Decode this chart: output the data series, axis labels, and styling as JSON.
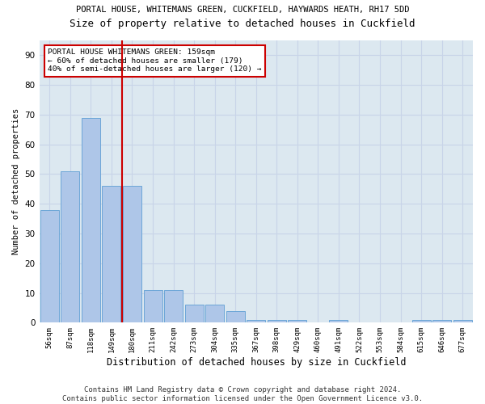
{
  "title1": "PORTAL HOUSE, WHITEMANS GREEN, CUCKFIELD, HAYWARDS HEATH, RH17 5DD",
  "title2": "Size of property relative to detached houses in Cuckfield",
  "xlabel": "Distribution of detached houses by size in Cuckfield",
  "ylabel": "Number of detached properties",
  "categories": [
    "56sqm",
    "87sqm",
    "118sqm",
    "149sqm",
    "180sqm",
    "211sqm",
    "242sqm",
    "273sqm",
    "304sqm",
    "335sqm",
    "367sqm",
    "398sqm",
    "429sqm",
    "460sqm",
    "491sqm",
    "522sqm",
    "553sqm",
    "584sqm",
    "615sqm",
    "646sqm",
    "677sqm"
  ],
  "values": [
    38,
    51,
    69,
    46,
    46,
    11,
    11,
    6,
    6,
    4,
    1,
    1,
    1,
    0,
    1,
    0,
    0,
    0,
    1,
    1,
    1
  ],
  "bar_color": "#aec6e8",
  "bar_edge_color": "#5f9fd4",
  "vline_x": 3.5,
  "vline_color": "#cc0000",
  "annotation_text": "PORTAL HOUSE WHITEMANS GREEN: 159sqm\n← 60% of detached houses are smaller (179)\n40% of semi-detached houses are larger (120) →",
  "annotation_box_color": "#ffffff",
  "annotation_box_edge": "#cc0000",
  "ylim": [
    0,
    95
  ],
  "yticks": [
    0,
    10,
    20,
    30,
    40,
    50,
    60,
    70,
    80,
    90
  ],
  "footer": "Contains HM Land Registry data © Crown copyright and database right 2024.\nContains public sector information licensed under the Open Government Licence v3.0.",
  "bg_color": "#ffffff",
  "grid_color": "#c8d4e8",
  "title1_fontsize": 7.5,
  "title2_fontsize": 9,
  "xlabel_fontsize": 8.5,
  "ylabel_fontsize": 7.5,
  "footer_fontsize": 6.5,
  "ax_bg_color": "#dce8f0"
}
